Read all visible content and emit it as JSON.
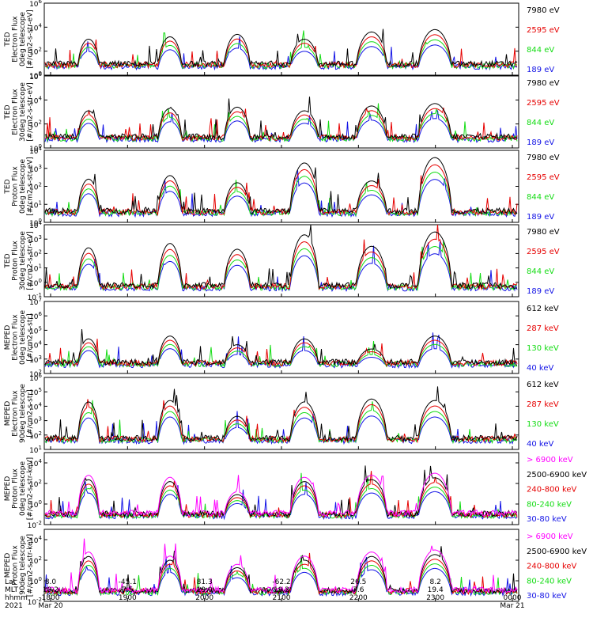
{
  "colors": {
    "blue": "#1414e6",
    "red": "#e60000",
    "green": "#14dc14",
    "black": "#000000",
    "magenta": "#ff00ff"
  },
  "chart_data": [
    {
      "type": "line",
      "ylabel": [
        "TED",
        "Electron Flux",
        "0deg telescope",
        "[#/cm2-s-str-eV]"
      ],
      "ticks": [
        "10^6",
        "10^4",
        "10^2",
        "10^0"
      ],
      "ylim": [
        1,
        1000000
      ],
      "series": [
        {
          "name": "7980 eV",
          "color": "black"
        },
        {
          "name": "2595 eV",
          "color": "red"
        },
        {
          "name": "844 eV",
          "color": "green"
        },
        {
          "name": "189 eV",
          "color": "blue"
        }
      ],
      "peaks_log10": [
        [
          3.0,
          3.5
        ],
        [
          3.2,
          2.8
        ],
        [
          3.4,
          2.6
        ],
        [
          3.0,
          2.9
        ],
        [
          3.6,
          3.0
        ],
        [
          3.8,
          3.3
        ]
      ]
    },
    {
      "type": "line",
      "ylabel": [
        "TED",
        "Electron Flux",
        "30deg telescope",
        "[#/cm2-s-str-eV]"
      ],
      "ticks": [
        "10^6",
        "10^4",
        "10^2",
        "10^0"
      ],
      "ylim": [
        1,
        1000000
      ],
      "series": [
        {
          "name": "7980 eV",
          "color": "black"
        },
        {
          "name": "2595 eV",
          "color": "red"
        },
        {
          "name": "844 eV",
          "color": "green"
        },
        {
          "name": "189 eV",
          "color": "blue"
        }
      ],
      "peaks_log10": [
        [
          3.1,
          3.2
        ],
        [
          3.3,
          2.7
        ],
        [
          3.4,
          2.5
        ],
        [
          3.1,
          3.0
        ],
        [
          3.5,
          3.0
        ],
        [
          3.7,
          3.2
        ]
      ]
    },
    {
      "type": "line",
      "ylabel": [
        "TED",
        "Proton Flux",
        "0deg telescope",
        "[#/cm2-s-str-eV]"
      ],
      "ticks": [
        "10^4",
        "10^3",
        "10^2",
        "10^1",
        "10^0"
      ],
      "ylim": [
        1,
        10000
      ],
      "series": [
        {
          "name": "7980 eV",
          "color": "black"
        },
        {
          "name": "2595 eV",
          "color": "red"
        },
        {
          "name": "844 eV",
          "color": "green"
        },
        {
          "name": "189 eV",
          "color": "blue"
        }
      ],
      "peaks_log10": [
        [
          2.4,
          2.2
        ],
        [
          2.6,
          2.3
        ],
        [
          2.2,
          2.0
        ],
        [
          3.3,
          2.6
        ],
        [
          2.3,
          2.4
        ],
        [
          3.6,
          3.2
        ]
      ]
    },
    {
      "type": "line",
      "ylabel": [
        "TED",
        "Proton Flux",
        "30deg telescope",
        "[#/cm2-s-str-eV]"
      ],
      "ticks": [
        "10^4",
        "10^3",
        "10^2",
        "10^1",
        "10^0",
        "10^-1"
      ],
      "ylim": [
        0.1,
        10000
      ],
      "series": [
        {
          "name": "7980 eV",
          "color": "black"
        },
        {
          "name": "2595 eV",
          "color": "red"
        },
        {
          "name": "844 eV",
          "color": "green"
        },
        {
          "name": "189 eV",
          "color": "blue"
        }
      ],
      "peaks_log10": [
        [
          2.4,
          2.3
        ],
        [
          2.7,
          2.6
        ],
        [
          2.3,
          2.2
        ],
        [
          3.3,
          2.6
        ],
        [
          2.5,
          2.5
        ],
        [
          3.5,
          3.2
        ]
      ]
    },
    {
      "type": "line",
      "ylabel": [
        "MEPED",
        "Electron Flux",
        "0deg telescope",
        "[#/cm2-s-str]"
      ],
      "ticks": [
        "10^7",
        "10^6",
        "10^5",
        "10^4",
        "10^3",
        "10^2"
      ],
      "ylim": [
        100,
        10000000
      ],
      "series": [
        {
          "name": "612 keV",
          "color": "black"
        },
        {
          "name": "287 keV",
          "color": "red"
        },
        {
          "name": "130 keV",
          "color": "green"
        },
        {
          "name": "40 keV",
          "color": "blue"
        }
      ],
      "peaks_log10": [
        [
          4.4,
          4.2
        ],
        [
          4.6,
          3.5
        ],
        [
          4.0,
          3.3
        ],
        [
          4.4,
          3.6
        ],
        [
          3.7,
          4.0
        ],
        [
          4.6,
          4.2
        ]
      ]
    },
    {
      "type": "line",
      "ylabel": [
        "MEPED",
        "Electron Flux",
        "90deg telescope",
        "[#/cm2-s-str]"
      ],
      "ticks": [
        "10^6",
        "10^5",
        "10^4",
        "10^3",
        "10^2",
        "10^1"
      ],
      "ylim": [
        10,
        1000000
      ],
      "series": [
        {
          "name": "612 keV",
          "color": "black"
        },
        {
          "name": "287 keV",
          "color": "red"
        },
        {
          "name": "130 keV",
          "color": "green"
        },
        {
          "name": "40 keV",
          "color": "blue"
        }
      ],
      "peaks_log10": [
        [
          4.3,
          4.6
        ],
        [
          4.4,
          4.2
        ],
        [
          3.3,
          3.6
        ],
        [
          4.3,
          4.2
        ],
        [
          4.5,
          4.3
        ],
        [
          4.4,
          4.6
        ]
      ]
    },
    {
      "type": "line",
      "ylabel": [
        "MEPED",
        "Proton Flux",
        "0deg telescope",
        "[#/cm2-s-str-keV]"
      ],
      "ticks": [
        "10^4",
        "10^2",
        "10^0",
        "10^-2"
      ],
      "ylim": [
        0.01,
        100000
      ],
      "series": [
        {
          "name": "> 6900 keV",
          "color": "magenta"
        },
        {
          "name": "2500-6900 keV",
          "color": "black"
        },
        {
          "name": "240-800 keV",
          "color": "red"
        },
        {
          "name": "80-240 keV",
          "color": "green"
        },
        {
          "name": "30-80 keV",
          "color": "blue"
        }
      ],
      "peaks_log10": [
        [
          2.8,
          2.4
        ],
        [
          2.6,
          2.0
        ],
        [
          1.2,
          2.6
        ],
        [
          2.6,
          2.4
        ],
        [
          2.8,
          2.6
        ],
        [
          3.0,
          2.8
        ]
      ]
    },
    {
      "type": "line",
      "ylabel": [
        "MEPED",
        "Proton Flux",
        "90deg telescope",
        "[#/cm2-s-str-keV]"
      ],
      "ticks": [
        "10^4",
        "10^2",
        "10^0",
        "10^-2"
      ],
      "ylim": [
        0.01,
        100000
      ],
      "series": [
        {
          "name": "> 6900 keV",
          "color": "magenta"
        },
        {
          "name": "2500-6900 keV",
          "color": "black"
        },
        {
          "name": "240-800 keV",
          "color": "red"
        },
        {
          "name": "80-240 keV",
          "color": "green"
        },
        {
          "name": "30-80 keV",
          "color": "blue"
        }
      ],
      "peaks_log10": [
        [
          2.8,
          2.2
        ],
        [
          2.4,
          2.6
        ],
        [
          1.6,
          2.6
        ],
        [
          2.4,
          2.8
        ],
        [
          2.8,
          2.4
        ],
        [
          3.0,
          2.6
        ]
      ]
    }
  ],
  "xaxis": {
    "row_labels": [
      "Lat",
      "MLT",
      "hhmm",
      "2021"
    ],
    "columns": [
      {
        "lat": "8.0",
        "mlt": "19.2",
        "hhmm": "1800",
        "date": "Mar 20"
      },
      {
        "lat": "-45.1",
        "mlt": "7.5",
        "hhmm": "1900",
        "date": ""
      },
      {
        "lat": "81.3",
        "mlt": "19.0",
        "hhmm": "2000",
        "date": ""
      },
      {
        "lat": "-62.2",
        "mlt": "19.2",
        "hhmm": "2100",
        "date": ""
      },
      {
        "lat": "26.5",
        "mlt": "7.6",
        "hhmm": "2200",
        "date": ""
      },
      {
        "lat": "8.2",
        "mlt": "19.4",
        "hhmm": "2300",
        "date": ""
      },
      {
        "lat": "",
        "mlt": "",
        "hhmm": "0000",
        "date": "Mar 21"
      }
    ]
  }
}
